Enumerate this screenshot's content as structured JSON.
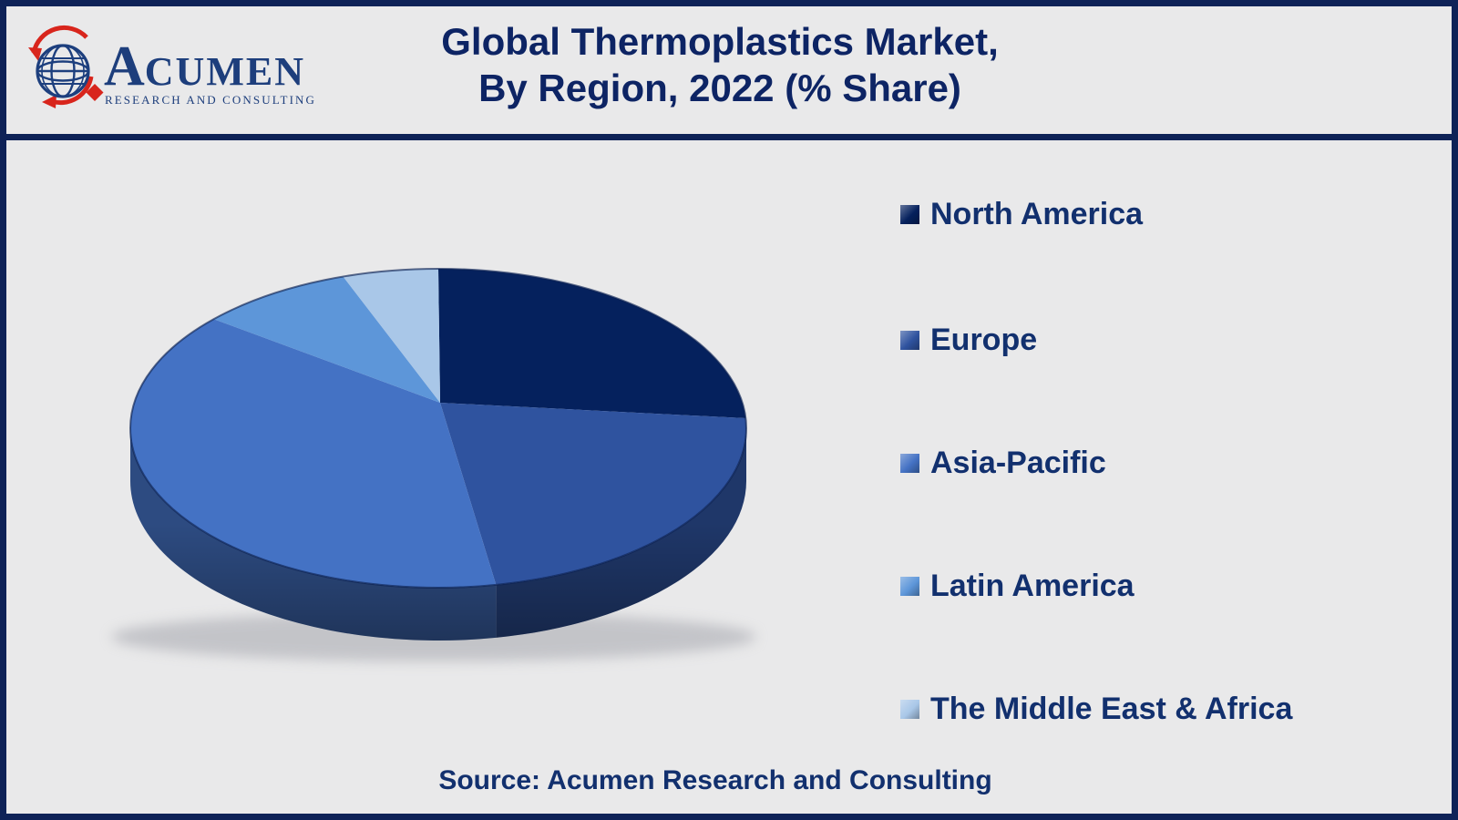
{
  "page": {
    "background": "#e9e9ea",
    "border_color": "#0e2257",
    "accent_navy": "#0d2464"
  },
  "logo": {
    "brand_a": "A",
    "brand_rest": "CUMEN",
    "tagline": "RESEARCH AND CONSULTING",
    "globe_color": "#1d3f7e",
    "accent_red": "#d8251c"
  },
  "header": {
    "title_line1": "Global Thermoplastics Market,",
    "title_line2": "By Region, 2022 (% Share)"
  },
  "chart_data": {
    "type": "pie",
    "style": "3d",
    "title": "Global Thermoplastics Market, By Region, 2022 (% Share)",
    "unit": "% share",
    "categories": [
      "North America",
      "Europe",
      "Asia-Pacific",
      "Latin America",
      "The Middle East & Africa"
    ],
    "values": [
      24,
      23,
      40,
      8,
      5
    ],
    "colors": [
      "#05215d",
      "#2f539f",
      "#4472c4",
      "#5d96d9",
      "#a9c7e8"
    ],
    "legend_position": "right",
    "data_labels": false,
    "start_angle_deg": 0,
    "direction": "clockwise"
  },
  "footer": {
    "source": "Source: Acumen Research and Consulting"
  }
}
